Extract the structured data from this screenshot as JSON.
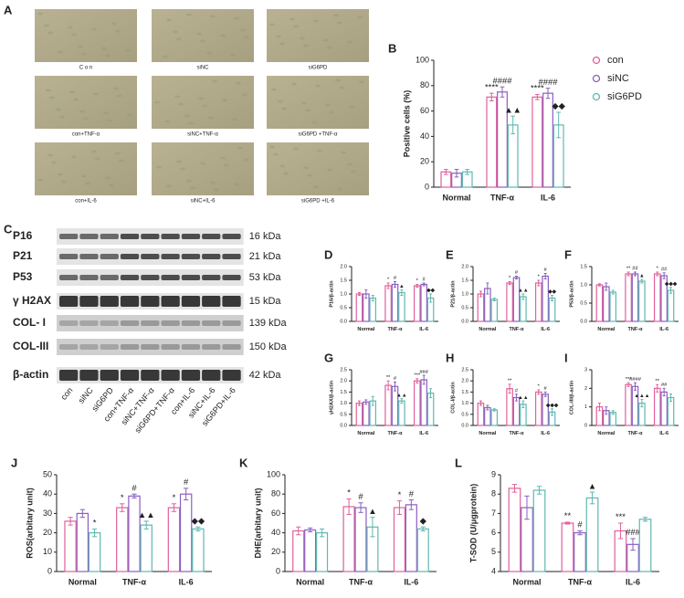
{
  "micrographs": {
    "panel": "A",
    "labels": [
      "C o n",
      "siNC",
      "siG6PD",
      "con+TNF-α",
      "siNC+TNF-α",
      "siG6PD +TNF-α",
      "con+IL-6",
      "siNC+IL-6",
      "siG6PD +IL-6"
    ]
  },
  "blot": {
    "panel": "C",
    "proteins": [
      "P16",
      "P21",
      "P53",
      "γ H2AX",
      "COL- I",
      "COL-III",
      "β-actin"
    ],
    "sizes": [
      "16 kDa",
      "21 kDa",
      "53 kDa",
      "15 kDa",
      "139 kDa",
      "150 kDa",
      "42 kDa"
    ],
    "lanes": [
      "con",
      "siNC",
      "siG6PD",
      "con+TNF-α",
      "siNC+TNF-α",
      "siG6PD+TNF-α",
      "con+IL-6",
      "siNC+IL-6",
      "siG6PD+IL-6"
    ]
  },
  "chart_data": [
    {
      "type": "bar",
      "panel": "B",
      "ylabel": "Positive cells (%)",
      "categories": [
        "Normal",
        "TNF-α",
        "IL-6"
      ],
      "ylim": [
        0,
        100
      ],
      "yticks": [
        0,
        20,
        40,
        60,
        80,
        100
      ],
      "legend": "right",
      "series": [
        {
          "name": "con",
          "color": "#e0609a",
          "values": [
            12,
            71,
            71
          ],
          "errors": [
            2,
            3,
            2
          ],
          "significance": [
            null,
            "****",
            "****"
          ]
        },
        {
          "name": "siNC",
          "color": "#8a5fc0",
          "values": [
            11,
            75,
            74
          ],
          "errors": [
            3,
            4,
            4
          ],
          "significance": [
            null,
            "####",
            "####"
          ]
        },
        {
          "name": "siG6PD",
          "color": "#5fb8b0",
          "values": [
            12,
            49,
            49
          ],
          "errors": [
            2,
            7,
            10
          ],
          "significance": [
            null,
            "▲▲",
            "◆◆"
          ]
        }
      ]
    },
    {
      "type": "bar",
      "panel": "D",
      "ylabel": "P16/β-actin",
      "categories": [
        "Normal",
        "TNF-α",
        "IL-6"
      ],
      "ylim": [
        0,
        2
      ],
      "yticks": [
        {
          "value": 0,
          "label": "0.0"
        },
        {
          "value": 0.5,
          "label": "0.5"
        },
        {
          "value": 1,
          "label": "1.0"
        },
        {
          "value": 1.5,
          "label": "1.5"
        },
        {
          "value": 2,
          "label": "2.0"
        }
      ],
      "series": [
        {
          "name": "con",
          "color": "#e0609a",
          "values": [
            1.0,
            1.3,
            1.3
          ],
          "errors": [
            0.05,
            0.1,
            0.05
          ],
          "significance": [
            null,
            "*",
            "*"
          ]
        },
        {
          "name": "siNC",
          "color": "#8a5fc0",
          "values": [
            1.0,
            1.35,
            1.35
          ],
          "errors": [
            0.15,
            0.1,
            0.05
          ],
          "significance": [
            null,
            "#",
            "#"
          ]
        },
        {
          "name": "siG6PD",
          "color": "#5fb8b0",
          "values": [
            0.85,
            1.05,
            0.85
          ],
          "errors": [
            0.1,
            0.1,
            0.15
          ],
          "significance": [
            null,
            "▲",
            "◆◆"
          ]
        }
      ]
    },
    {
      "type": "bar",
      "panel": "E",
      "ylabel": "P21/β-actin",
      "categories": [
        "Normal",
        "TNF-α",
        "IL-6"
      ],
      "ylim": [
        0,
        2
      ],
      "yticks": [
        {
          "value": 0,
          "label": "0.0"
        },
        {
          "value": 0.5,
          "label": "0.5"
        },
        {
          "value": 1,
          "label": "1.0"
        },
        {
          "value": 1.5,
          "label": "1.5"
        },
        {
          "value": 2,
          "label": "2.0"
        }
      ],
      "series": [
        {
          "name": "con",
          "color": "#e0609a",
          "values": [
            1.0,
            1.4,
            1.4
          ],
          "errors": [
            0.1,
            0.05,
            0.1
          ],
          "significance": [
            null,
            "*",
            "*"
          ]
        },
        {
          "name": "siNC",
          "color": "#8a5fc0",
          "values": [
            1.2,
            1.6,
            1.65
          ],
          "errors": [
            0.2,
            0.05,
            0.1
          ],
          "significance": [
            null,
            "#",
            "#"
          ]
        },
        {
          "name": "siG6PD",
          "color": "#5fb8b0",
          "values": [
            0.8,
            0.9,
            0.85
          ],
          "errors": [
            0.05,
            0.1,
            0.1
          ],
          "significance": [
            null,
            "▲▲",
            "◆◆"
          ]
        }
      ]
    },
    {
      "type": "bar",
      "panel": "F",
      "ylabel": "P53/β-actin",
      "categories": [
        "Normal",
        "TNF-α",
        "IL-6"
      ],
      "ylim": [
        0,
        1.5
      ],
      "yticks": [
        {
          "value": 0,
          "label": "0.0"
        },
        {
          "value": 0.5,
          "label": "0.5"
        },
        {
          "value": 1,
          "label": "1.0"
        },
        {
          "value": 1.5,
          "label": "1.5"
        }
      ],
      "series": [
        {
          "name": "con",
          "color": "#e0609a",
          "values": [
            1.0,
            1.3,
            1.3
          ],
          "errors": [
            0.03,
            0.05,
            0.05
          ],
          "significance": [
            null,
            "**",
            "*"
          ]
        },
        {
          "name": "siNC",
          "color": "#8a5fc0",
          "values": [
            0.95,
            1.3,
            1.25
          ],
          "errors": [
            0.1,
            0.05,
            0.08
          ],
          "significance": [
            null,
            "##",
            "##"
          ]
        },
        {
          "name": "siG6PD",
          "color": "#5fb8b0",
          "values": [
            0.8,
            1.1,
            0.85
          ],
          "errors": [
            0.05,
            0.05,
            0.08
          ],
          "significance": [
            null,
            "▲",
            "◆◆◆"
          ]
        }
      ]
    },
    {
      "type": "bar",
      "panel": "G",
      "ylabel": "γH2AX/β-actin",
      "categories": [
        "Normal",
        "TNF-α",
        "IL-6"
      ],
      "ylim": [
        0,
        2.5
      ],
      "yticks": [
        {
          "value": 0,
          "label": "0.0"
        },
        {
          "value": 0.5,
          "label": "0.5"
        },
        {
          "value": 1,
          "label": "1.0"
        },
        {
          "value": 1.5,
          "label": "1.5"
        },
        {
          "value": 2,
          "label": "2.0"
        },
        {
          "value": 2.5,
          "label": "2.5"
        }
      ],
      "series": [
        {
          "name": "con",
          "color": "#e0609a",
          "values": [
            1.0,
            1.8,
            2.0
          ],
          "errors": [
            0.1,
            0.2,
            0.1
          ],
          "significance": [
            null,
            "**",
            "***"
          ]
        },
        {
          "name": "siNC",
          "color": "#8a5fc0",
          "values": [
            1.05,
            1.75,
            2.05
          ],
          "errors": [
            0.1,
            0.2,
            0.2
          ],
          "significance": [
            null,
            "#",
            "###"
          ]
        },
        {
          "name": "siG6PD",
          "color": "#5fb8b0",
          "values": [
            1.1,
            1.1,
            1.45
          ],
          "errors": [
            0.2,
            0.1,
            0.2
          ],
          "significance": [
            null,
            "▲▲",
            null
          ]
        }
      ]
    },
    {
      "type": "bar",
      "panel": "H",
      "ylabel": "COL-I/β-actin",
      "categories": [
        "Normal",
        "TNF-α",
        "IL-6"
      ],
      "ylim": [
        0,
        2.5
      ],
      "yticks": [
        {
          "value": 0,
          "label": "0.0"
        },
        {
          "value": 0.5,
          "label": "0.5"
        },
        {
          "value": 1,
          "label": "1.0"
        },
        {
          "value": 1.5,
          "label": "1.5"
        },
        {
          "value": 2,
          "label": "2.0"
        },
        {
          "value": 2.5,
          "label": "2.5"
        }
      ],
      "series": [
        {
          "name": "con",
          "color": "#e0609a",
          "values": [
            1.0,
            1.65,
            1.5
          ],
          "errors": [
            0.1,
            0.2,
            0.1
          ],
          "significance": [
            null,
            "**",
            "*"
          ]
        },
        {
          "name": "siNC",
          "color": "#8a5fc0",
          "values": [
            0.8,
            1.25,
            1.4
          ],
          "errors": [
            0.1,
            0.15,
            0.1
          ],
          "significance": [
            null,
            "#",
            "#"
          ]
        },
        {
          "name": "siG6PD",
          "color": "#5fb8b0",
          "values": [
            0.7,
            0.95,
            0.6
          ],
          "errors": [
            0.05,
            0.15,
            0.15
          ],
          "significance": [
            null,
            "▲▲",
            "◆◆◆"
          ]
        }
      ]
    },
    {
      "type": "bar",
      "panel": "I",
      "ylabel": "COL-III/β-actin",
      "categories": [
        "Normal",
        "TNF-α",
        "IL-6"
      ],
      "ylim": [
        0,
        3
      ],
      "yticks": [
        0,
        1,
        2,
        3
      ],
      "series": [
        {
          "name": "con",
          "color": "#e0609a",
          "values": [
            1.0,
            2.2,
            2.0
          ],
          "errors": [
            0.2,
            0.1,
            0.2
          ],
          "significance": [
            null,
            "***",
            "**"
          ]
        },
        {
          "name": "siNC",
          "color": "#8a5fc0",
          "values": [
            0.8,
            2.1,
            1.8
          ],
          "errors": [
            0.2,
            0.2,
            0.2
          ],
          "significance": [
            null,
            "####",
            "##"
          ]
        },
        {
          "name": "siG6PD",
          "color": "#5fb8b0",
          "values": [
            0.7,
            1.2,
            1.5
          ],
          "errors": [
            0.1,
            0.2,
            0.2
          ],
          "significance": [
            null,
            "▲▲▲",
            null
          ]
        }
      ]
    },
    {
      "type": "bar",
      "panel": "J",
      "ylabel": "ROS(arbitary unit)",
      "categories": [
        "Normal",
        "TNF-α",
        "IL-6"
      ],
      "ylim": [
        0,
        50
      ],
      "yticks": [
        0,
        10,
        20,
        30,
        40,
        50
      ],
      "series": [
        {
          "name": "con",
          "color": "#e0609a",
          "values": [
            26,
            33,
            33
          ],
          "errors": [
            2,
            2,
            2
          ],
          "significance": [
            null,
            "*",
            "*"
          ]
        },
        {
          "name": "siNC",
          "color": "#8a5fc0",
          "values": [
            30,
            39,
            40
          ],
          "errors": [
            2,
            1,
            3
          ],
          "significance": [
            null,
            "#",
            "#"
          ]
        },
        {
          "name": "siG6PD",
          "color": "#5fb8b0",
          "values": [
            20,
            24,
            22
          ],
          "errors": [
            2,
            2,
            1
          ],
          "significance": [
            "*",
            "▲▲",
            "◆◆"
          ]
        }
      ]
    },
    {
      "type": "bar",
      "panel": "K",
      "ylabel": "DHE(arbitary unit)",
      "categories": [
        "Normal",
        "TNF-α",
        "IL-6"
      ],
      "ylim": [
        0,
        100
      ],
      "yticks": [
        0,
        20,
        40,
        60,
        80,
        100
      ],
      "series": [
        {
          "name": "con",
          "color": "#e0609a",
          "values": [
            42,
            67,
            66
          ],
          "errors": [
            4,
            8,
            7
          ],
          "significance": [
            null,
            "*",
            "*"
          ]
        },
        {
          "name": "siNC",
          "color": "#8a5fc0",
          "values": [
            43,
            66,
            69
          ],
          "errors": [
            2,
            5,
            5
          ],
          "significance": [
            null,
            "#",
            "#"
          ]
        },
        {
          "name": "siG6PD",
          "color": "#5fb8b0",
          "values": [
            40,
            46,
            44
          ],
          "errors": [
            4,
            10,
            2
          ],
          "significance": [
            null,
            "▲",
            "◆"
          ]
        }
      ]
    },
    {
      "type": "bar",
      "panel": "L",
      "ylabel": "T-SOD (U/μgprotein)",
      "categories": [
        "Normal",
        "TNF-α",
        "IL-6"
      ],
      "ylim": [
        4,
        9
      ],
      "yticks": [
        4,
        5,
        6,
        7,
        8,
        9
      ],
      "series": [
        {
          "name": "con",
          "color": "#e0609a",
          "values": [
            8.3,
            6.5,
            6.1
          ],
          "errors": [
            0.2,
            0.05,
            0.4
          ],
          "significance": [
            null,
            "**",
            "***"
          ]
        },
        {
          "name": "siNC",
          "color": "#8a5fc0",
          "values": [
            7.3,
            6.0,
            5.4
          ],
          "errors": [
            0.6,
            0.1,
            0.3
          ],
          "significance": [
            null,
            "#",
            "###"
          ]
        },
        {
          "name": "siG6PD",
          "color": "#5fb8b0",
          "values": [
            8.2,
            7.8,
            6.7
          ],
          "errors": [
            0.2,
            0.3,
            0.1
          ],
          "significance": [
            null,
            "▲",
            null
          ]
        }
      ]
    }
  ]
}
